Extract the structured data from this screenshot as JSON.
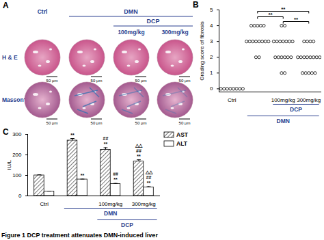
{
  "panel_a": {
    "label": "A",
    "columns": [
      {
        "label": "Ctrl"
      },
      {
        "label": null
      },
      {
        "label": "100mg/kg"
      },
      {
        "label": "300mg/kg"
      }
    ],
    "groups": [
      {
        "label": "DMN",
        "from": 1,
        "to": 3
      },
      {
        "label": "DCP",
        "from": 2,
        "to": 3
      }
    ],
    "rows": [
      "H & E",
      "Masson's"
    ],
    "scale_bar": "50 μm"
  },
  "chart_data": [
    {
      "type": "scatter",
      "panel_label": "B",
      "categories": [
        "Ctrl",
        null,
        "100mg/kg",
        "300mg/kg"
      ],
      "values": [
        [
          0,
          0,
          0,
          0,
          0,
          0,
          0,
          0
        ],
        [
          4,
          4,
          4,
          4,
          4,
          3,
          3,
          3,
          3,
          3,
          3,
          3,
          3,
          2,
          2
        ],
        [
          4,
          4,
          3,
          3,
          3,
          3,
          3,
          3,
          3,
          2,
          2,
          2,
          2,
          2,
          2,
          1,
          1
        ],
        [
          3,
          3,
          3,
          3,
          2,
          2,
          2,
          2,
          2,
          2,
          2,
          2,
          1,
          1,
          1,
          1,
          1
        ]
      ],
      "ylabel": "Grading score of fibrosis",
      "ylim": [
        -0.2,
        5
      ],
      "yticks": [
        0,
        1,
        2,
        3,
        4,
        5
      ],
      "marker": "circle",
      "group_labels": [
        {
          "label": "DCP",
          "from": 2,
          "to": 3
        },
        {
          "label": "DMN",
          "from": 1,
          "to": 3
        }
      ],
      "significance": [
        {
          "from": 1,
          "to": 3,
          "label": "**"
        },
        {
          "from": 1,
          "to": 2,
          "label": "**"
        },
        {
          "from": 2,
          "to": 3,
          "label": "**"
        }
      ]
    },
    {
      "type": "bar",
      "panel_label": "C",
      "categories": [
        "Ctrl",
        null,
        "100mg/kg",
        "300mg/kg"
      ],
      "series": [
        {
          "name": "AST",
          "color": "#555555",
          "values": [
            100,
            270,
            225,
            168
          ],
          "errors": [
            3,
            10,
            10,
            8
          ],
          "annotations": [
            [],
            [
              "**"
            ],
            [
              "##",
              "**"
            ],
            [
              "△△",
              "##",
              "**"
            ]
          ]
        },
        {
          "name": "ALT",
          "color": "#ffffff",
          "values": [
            22,
            80,
            58,
            42
          ],
          "errors": [
            1,
            2,
            3,
            3
          ],
          "annotations": [
            [],
            [
              "**"
            ],
            [
              "##",
              "**"
            ],
            [
              "△△",
              "##",
              "**"
            ]
          ]
        }
      ],
      "ylabel": "IU/L",
      "ylim": [
        0,
        300
      ],
      "yticks": [
        0,
        100,
        200,
        300
      ],
      "legend": "top-right",
      "group_labels": [
        {
          "label": "DMN",
          "from": 1,
          "to": 3
        },
        {
          "label": "DCP",
          "from": 2,
          "to": 3
        }
      ]
    }
  ],
  "caption": "Figure 1  DCP treatment attenuates DMN-induced liver"
}
